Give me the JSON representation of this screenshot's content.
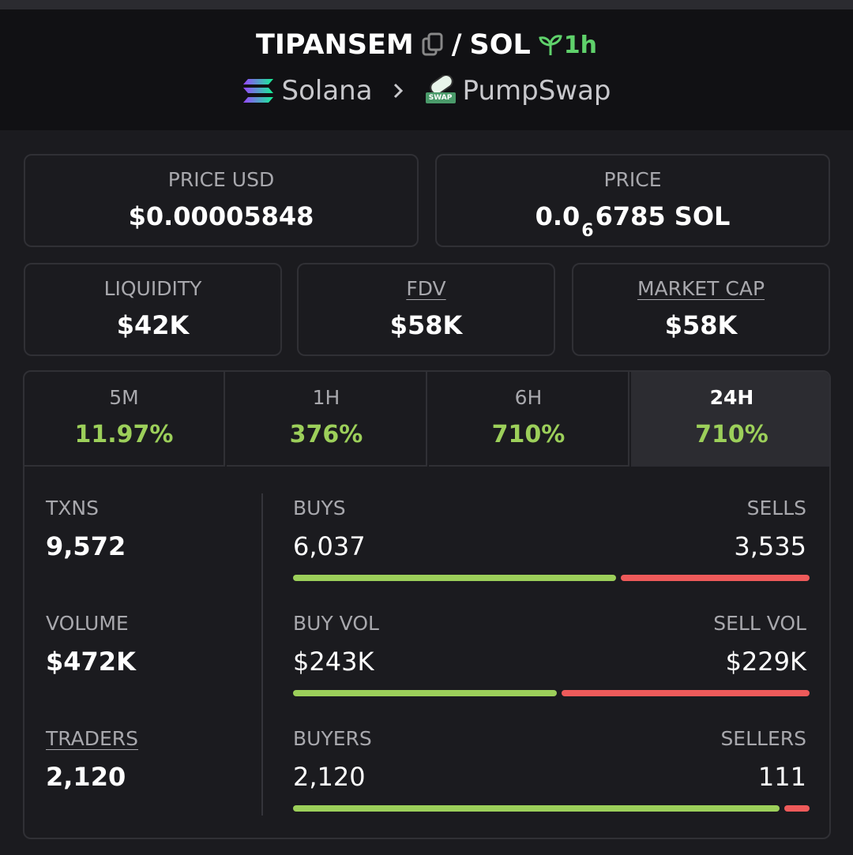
{
  "header": {
    "token": "TIPANSEM",
    "separator": "/",
    "quote": "SOL",
    "age": "1h",
    "chain": "Solana",
    "dex": "PumpSwap",
    "dex_badge": "SWAP"
  },
  "price_cards": [
    {
      "label": "PRICE USD",
      "value": "$0.00005848"
    },
    {
      "label": "PRICE",
      "value": {
        "prefix": "0.0",
        "subscript": "6",
        "rest": "6785 SOL"
      }
    }
  ],
  "metric_cards": [
    {
      "label": "LIQUIDITY",
      "value": "$42K",
      "underline": false
    },
    {
      "label": "FDV",
      "value": "$58K",
      "underline": true
    },
    {
      "label": "MARKET CAP",
      "value": "$58K",
      "underline": true
    }
  ],
  "timeframes": {
    "active": 3,
    "tabs": [
      {
        "label": "5M",
        "change": "11.97%"
      },
      {
        "label": "1H",
        "change": "376%"
      },
      {
        "label": "6H",
        "change": "710%"
      },
      {
        "label": "24H",
        "change": "710%"
      }
    ]
  },
  "stats": [
    {
      "label": "TXNS",
      "value": "9,572",
      "underline": false
    },
    {
      "label": "VOLUME",
      "value": "$472K",
      "underline": false
    },
    {
      "label": "TRADERS",
      "value": "2,120",
      "underline": true
    }
  ],
  "splits": [
    {
      "left_label": "BUYS",
      "left": {
        "value": 6037,
        "label": "6,037"
      },
      "right_label": "SELLS",
      "right": {
        "value": 3535,
        "label": "3,535"
      }
    },
    {
      "left_label": "BUY VOL",
      "left": {
        "value": 243000,
        "label": "$243K"
      },
      "right_label": "SELL VOL",
      "right": {
        "value": 229000,
        "label": "$229K"
      }
    },
    {
      "left_label": "BUYERS",
      "left": {
        "value": 2120,
        "label": "2,120"
      },
      "right_label": "SELLERS",
      "right": {
        "value": 111,
        "label": "111"
      }
    }
  ]
}
